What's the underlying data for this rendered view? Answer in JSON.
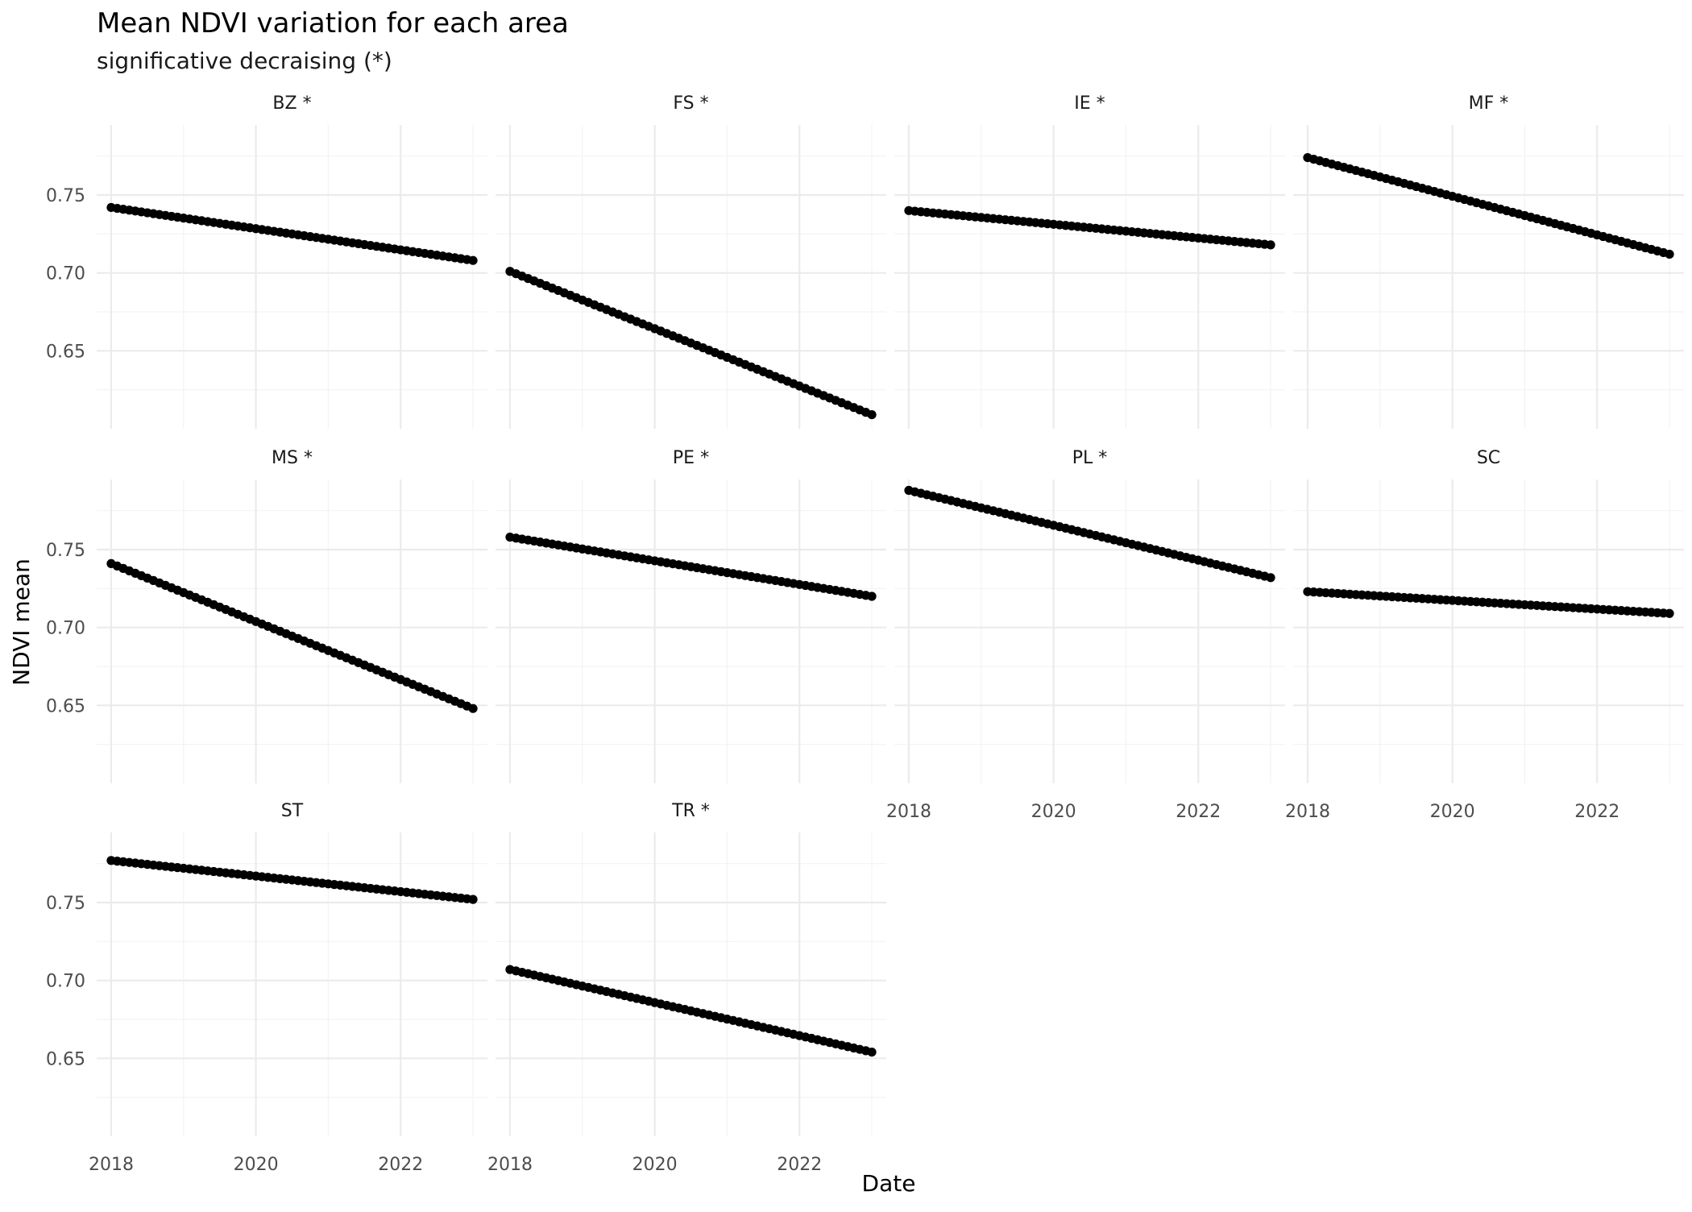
{
  "chart_data": {
    "type": "scatter",
    "title": "Mean NDVI variation for each area",
    "subtitle": "significative decraising (*)",
    "xlabel": "Date",
    "ylabel": "NDVI mean",
    "xlim": [
      2017.8,
      2023.2
    ],
    "ylim": [
      0.6,
      0.795
    ],
    "x_ticks": [
      2018,
      2020,
      2022
    ],
    "x_tick_labels": [
      "2018",
      "2020",
      "2022"
    ],
    "y_ticks": [
      0.65,
      0.7,
      0.75
    ],
    "y_tick_labels": [
      "0.65",
      "0.70",
      "0.75"
    ],
    "grid": true,
    "facets": {
      "ncol": 4,
      "nrow": 3,
      "shared_axes": true
    },
    "point_color": "#000000",
    "panels": [
      {
        "label": "BZ *",
        "x_start": 2018.0,
        "x_end": 2023.0,
        "y_start": 0.742,
        "y_end": 0.708,
        "n_points": 61
      },
      {
        "label": "FS *",
        "x_start": 2018.0,
        "x_end": 2023.0,
        "y_start": 0.701,
        "y_end": 0.609,
        "n_points": 61
      },
      {
        "label": "IE *",
        "x_start": 2018.0,
        "x_end": 2023.0,
        "y_start": 0.74,
        "y_end": 0.718,
        "n_points": 61
      },
      {
        "label": "MF *",
        "x_start": 2018.0,
        "x_end": 2023.0,
        "y_start": 0.774,
        "y_end": 0.712,
        "n_points": 61
      },
      {
        "label": "MS *",
        "x_start": 2018.0,
        "x_end": 2023.0,
        "y_start": 0.741,
        "y_end": 0.648,
        "n_points": 61
      },
      {
        "label": "PE *",
        "x_start": 2018.0,
        "x_end": 2023.0,
        "y_start": 0.758,
        "y_end": 0.72,
        "n_points": 61
      },
      {
        "label": "PL *",
        "x_start": 2018.0,
        "x_end": 2023.0,
        "y_start": 0.788,
        "y_end": 0.732,
        "n_points": 61
      },
      {
        "label": "SC",
        "x_start": 2018.0,
        "x_end": 2023.0,
        "y_start": 0.723,
        "y_end": 0.709,
        "n_points": 61
      },
      {
        "label": "ST",
        "x_start": 2018.0,
        "x_end": 2023.0,
        "y_start": 0.777,
        "y_end": 0.752,
        "n_points": 61
      },
      {
        "label": "TR *",
        "x_start": 2018.0,
        "x_end": 2023.0,
        "y_start": 0.707,
        "y_end": 0.654,
        "n_points": 61
      }
    ]
  }
}
